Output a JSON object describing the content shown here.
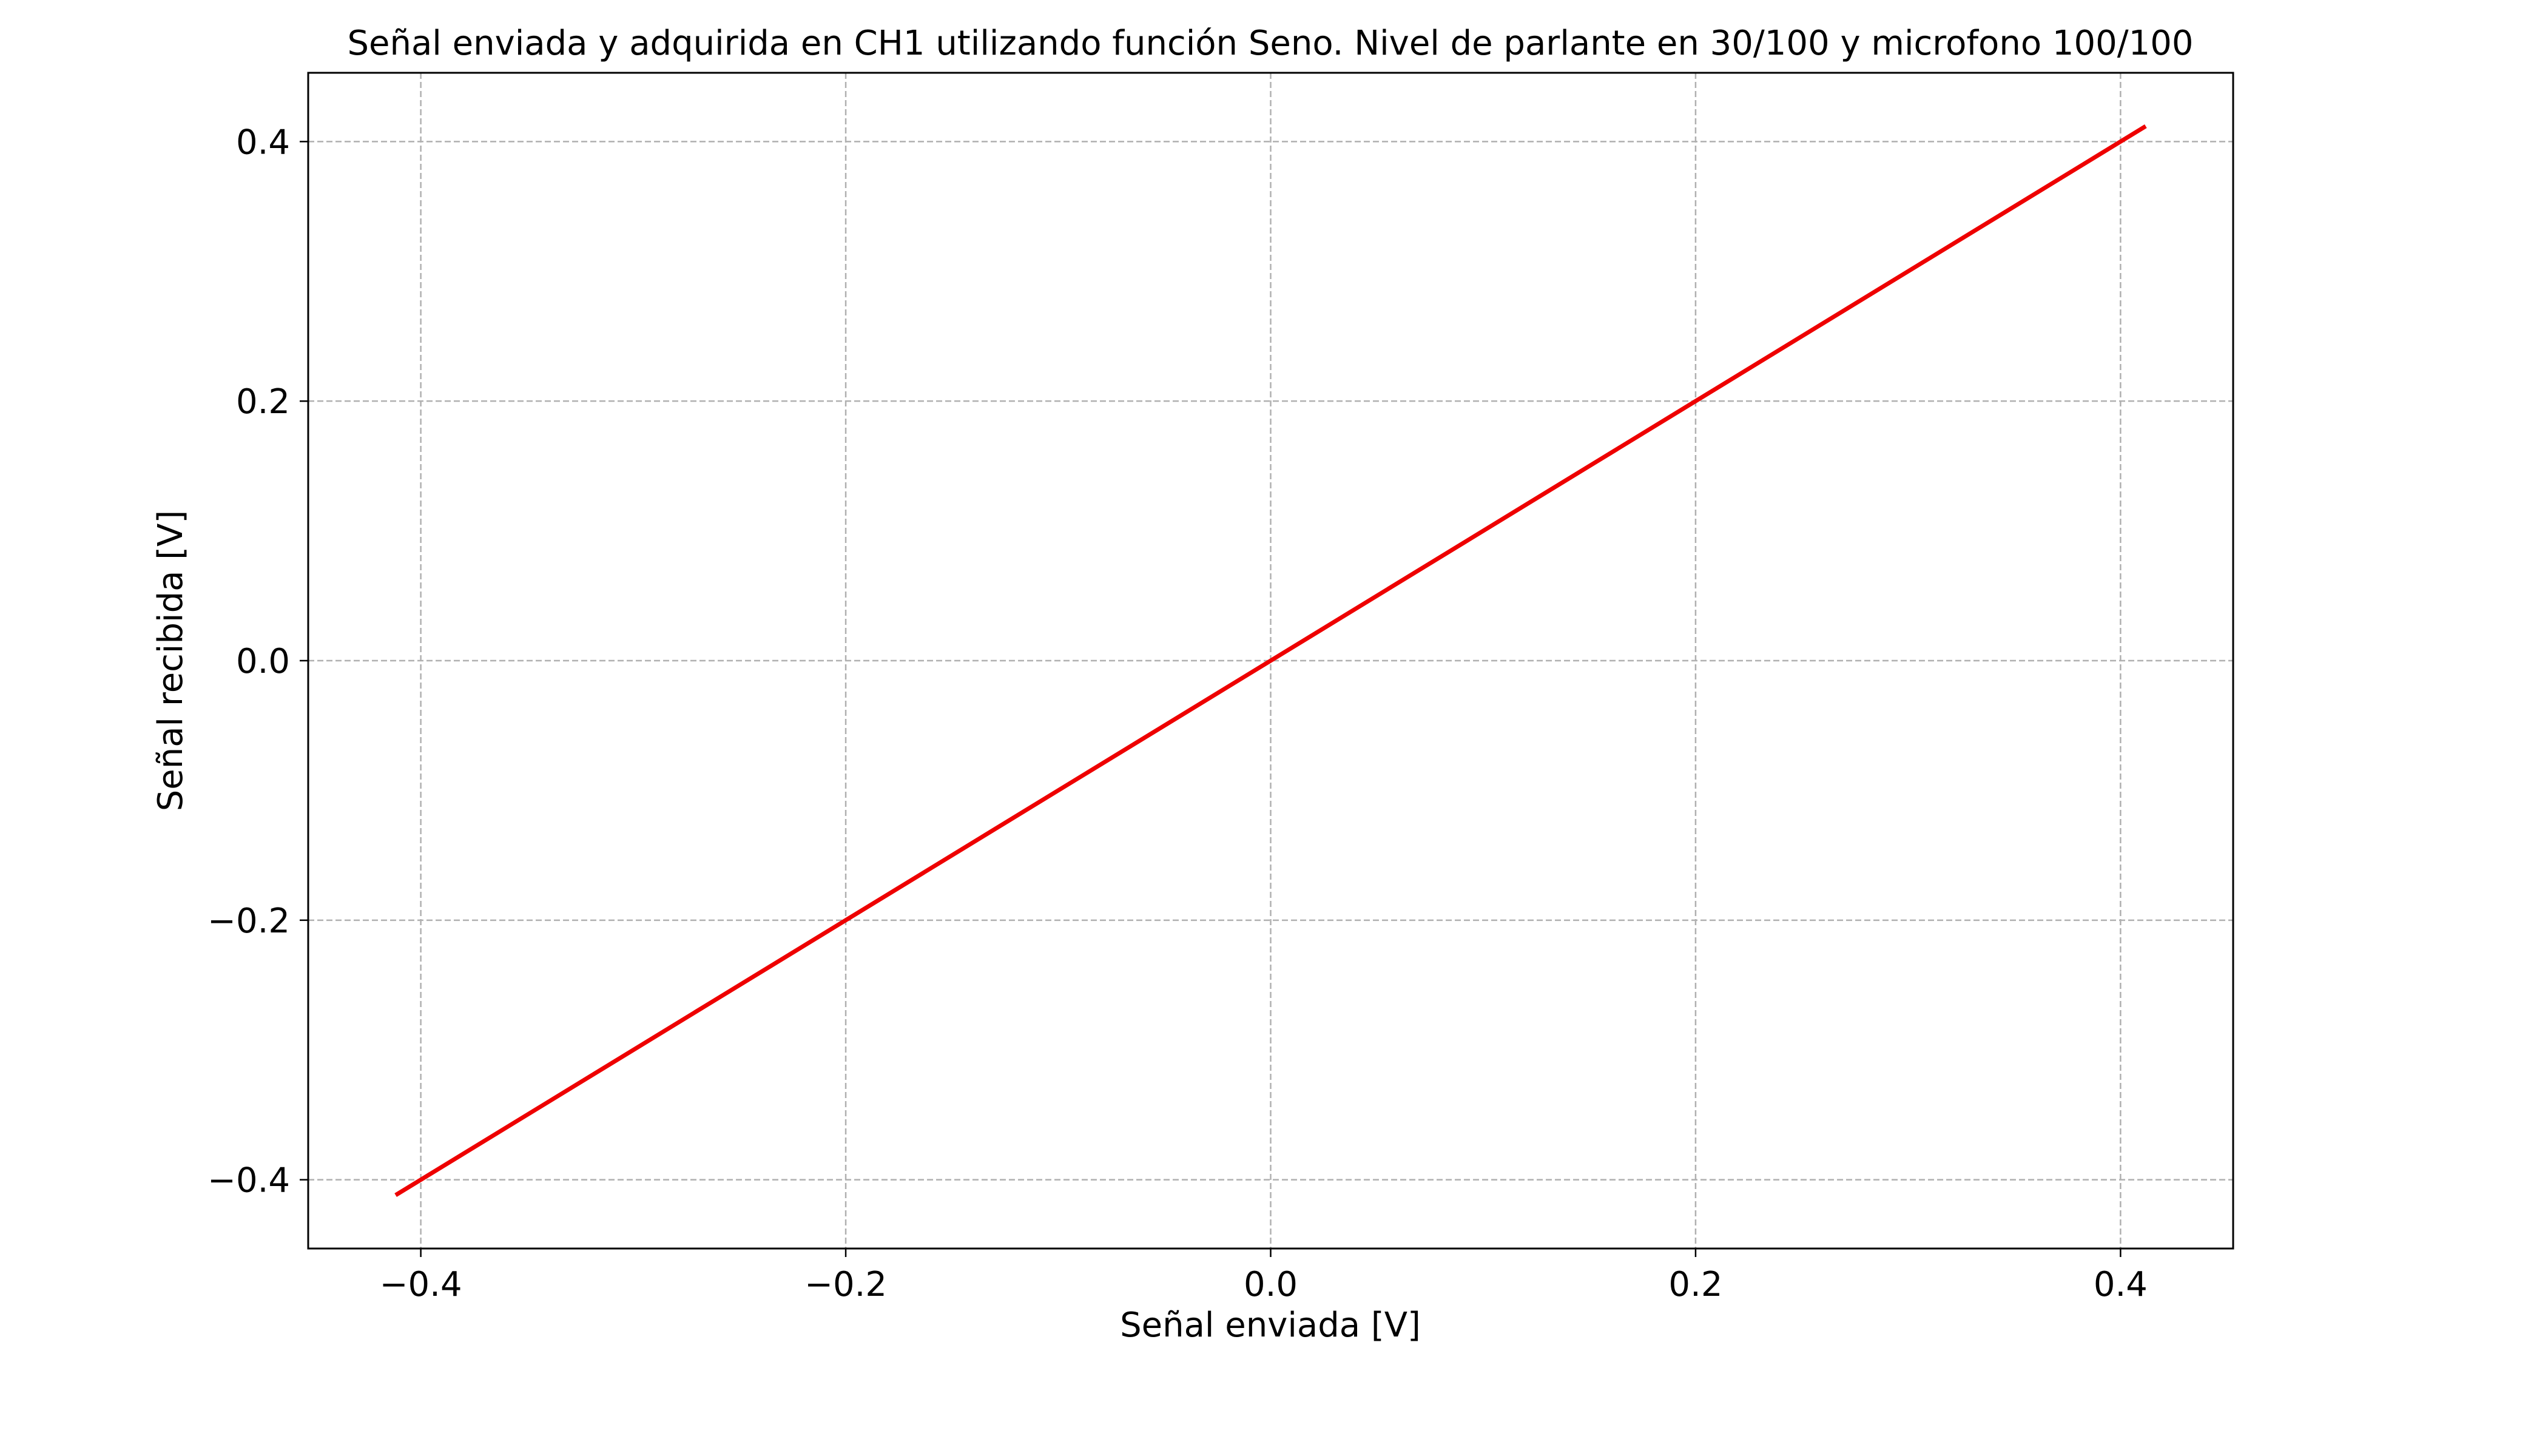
{
  "chart_data": {
    "type": "line",
    "title": "Señal enviada y adquirida en CH1 utilizando función Seno. Nivel de parlante en 30/100 y microfono 100/100",
    "xlabel": "Señal enviada [V]",
    "ylabel": "Señal recibida [V]",
    "xlim": [
      -0.453,
      0.453
    ],
    "ylim": [
      -0.453,
      0.453
    ],
    "xticks": [
      -0.4,
      -0.2,
      0.0,
      0.2,
      0.4
    ],
    "yticks": [
      -0.4,
      -0.2,
      0.0,
      0.2,
      0.4
    ],
    "xtick_labels": [
      "−0.4",
      "−0.2",
      "0.0",
      "0.2",
      "0.4"
    ],
    "ytick_labels": [
      "−0.4",
      "−0.2",
      "0.0",
      "0.2",
      "0.4"
    ],
    "grid": true,
    "series": [
      {
        "color": "#ee0000",
        "x": [
          -0.411,
          0.411
        ],
        "y": [
          -0.411,
          0.411
        ]
      }
    ]
  }
}
